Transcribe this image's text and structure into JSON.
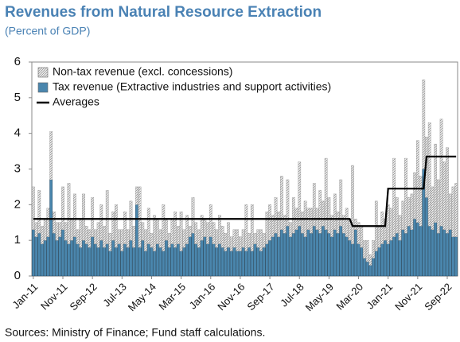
{
  "chart_data": {
    "type": "bar",
    "stacked": true,
    "title": "Revenues from Natural Resource Extraction",
    "subtitle": "(Percent of GDP)",
    "source": "Sources: Ministry of Finance; Fund staff calculations.",
    "categories": [
      "Jan-11",
      null,
      null,
      null,
      null,
      null,
      null,
      null,
      null,
      null,
      "Nov-11",
      null,
      null,
      null,
      null,
      null,
      null,
      null,
      null,
      null,
      "Sep-12",
      null,
      null,
      null,
      null,
      null,
      null,
      null,
      null,
      null,
      "Jul-13",
      null,
      null,
      null,
      null,
      null,
      null,
      null,
      null,
      null,
      "May-14",
      null,
      null,
      null,
      null,
      null,
      null,
      null,
      null,
      null,
      "Mar-15",
      null,
      null,
      null,
      null,
      null,
      null,
      null,
      null,
      null,
      "Jan-16",
      null,
      null,
      null,
      null,
      null,
      null,
      null,
      null,
      null,
      "Nov-16",
      null,
      null,
      null,
      null,
      null,
      null,
      null,
      null,
      null,
      "Sep-17",
      null,
      null,
      null,
      null,
      null,
      null,
      null,
      null,
      null,
      "Jul-18",
      null,
      null,
      null,
      null,
      null,
      null,
      null,
      null,
      null,
      "May-19",
      null,
      null,
      null,
      null,
      null,
      null,
      null,
      null,
      null,
      "Mar-20",
      null,
      null,
      null,
      null,
      null,
      null,
      null,
      null,
      null,
      "Jan-21",
      null,
      null,
      null,
      null,
      null,
      null,
      null,
      null,
      null,
      "Nov-21",
      null,
      null,
      null,
      null,
      null,
      null,
      null,
      null,
      null,
      "Sep-22",
      null,
      null,
      null
    ],
    "ylim": [
      0,
      6
    ],
    "yticks": [
      0,
      1,
      2,
      3,
      4,
      5,
      6
    ],
    "grid": false,
    "legend": "upper-left",
    "series": [
      {
        "name": "Tax revenue (Extractive industries and support activities)",
        "color": "#4a86ad",
        "kind": "bar",
        "values": [
          1.3,
          1.1,
          1.2,
          0.9,
          1.0,
          1.1,
          2.7,
          1.2,
          1.0,
          1.1,
          1.3,
          1.0,
          0.9,
          1.0,
          1.1,
          0.9,
          0.8,
          1.0,
          0.9,
          0.8,
          1.1,
          0.9,
          0.8,
          1.0,
          0.8,
          0.9,
          0.7,
          1.0,
          0.8,
          0.9,
          0.7,
          0.9,
          0.8,
          1.0,
          0.8,
          2.0,
          0.8,
          1.0,
          0.7,
          0.9,
          0.8,
          0.7,
          0.9,
          0.8,
          0.7,
          1.0,
          0.8,
          0.9,
          0.8,
          0.9,
          0.7,
          0.8,
          0.9,
          1.1,
          1.2,
          0.9,
          0.8,
          1.0,
          1.1,
          0.9,
          1.1,
          0.9,
          0.8,
          0.9,
          0.8,
          0.7,
          0.8,
          0.7,
          0.8,
          0.7,
          0.7,
          0.8,
          0.7,
          0.8,
          0.7,
          0.9,
          0.8,
          0.7,
          0.8,
          0.9,
          1.0,
          1.1,
          1.2,
          1.1,
          1.3,
          1.2,
          1.4,
          1.1,
          1.2,
          1.3,
          1.4,
          1.2,
          1.1,
          1.3,
          1.2,
          1.4,
          1.3,
          1.2,
          1.4,
          1.3,
          1.2,
          1.1,
          1.3,
          1.2,
          1.4,
          1.2,
          1.1,
          1.0,
          0.9,
          1.3,
          0.9,
          0.8,
          0.5,
          0.4,
          0.3,
          0.5,
          0.7,
          0.8,
          0.9,
          1.0,
          0.9,
          1.0,
          1.1,
          1.2,
          1.0,
          1.3,
          1.2,
          1.4,
          1.3,
          1.6,
          1.5,
          1.4,
          3.0,
          2.2,
          1.4,
          1.3,
          1.5,
          1.2,
          1.4,
          1.3,
          1.2,
          1.3,
          1.1,
          1.1
        ]
      },
      {
        "name": "Non-tax revenue (excl. concessions)",
        "color": "#d9d9d9",
        "kind": "bar",
        "values": [
          1.2,
          0.4,
          1.2,
          0.5,
          0.6,
          0.8,
          1.35,
          0.6,
          0.5,
          0.4,
          1.2,
          0.5,
          1.7,
          0.6,
          1.2,
          0.4,
          0.8,
          1.3,
          0.5,
          0.5,
          1.1,
          0.4,
          0.7,
          1.0,
          0.6,
          1.5,
          0.5,
          0.8,
          1.2,
          0.4,
          0.6,
          0.9,
          0.5,
          1.1,
          0.6,
          0.5,
          1.7,
          0.5,
          0.6,
          1.0,
          0.4,
          1.0,
          0.7,
          0.5,
          1.3,
          0.6,
          0.4,
          0.7,
          1.0,
          0.5,
          1.1,
          0.5,
          0.8,
          0.3,
          1.0,
          0.6,
          0.5,
          0.7,
          0.5,
          0.6,
          0.9,
          0.6,
          0.5,
          0.8,
          0.6,
          0.5,
          0.7,
          0.4,
          0.5,
          0.6,
          0.4,
          0.5,
          1.3,
          0.4,
          1.3,
          0.3,
          0.5,
          0.6,
          0.4,
          0.9,
          1.0,
          0.6,
          1.0,
          0.7,
          1.5,
          0.5,
          1.3,
          0.4,
          1.0,
          0.6,
          1.8,
          0.6,
          1.0,
          0.6,
          0.7,
          1.2,
          0.6,
          1.2,
          0.7,
          2.0,
          1.0,
          0.6,
          1.0,
          0.6,
          1.3,
          0.5,
          0.8,
          0.6,
          2.2,
          0.3,
          0.6,
          0.6,
          0.5,
          0.6,
          0.3,
          0.5,
          1.4,
          0.6,
          0.9,
          0.6,
          1.1,
          0.9,
          2.2,
          1.0,
          0.7,
          0.8,
          2.1,
          0.8,
          1.0,
          1.3,
          2.3,
          1.4,
          2.5,
          1.7,
          2.9,
          1.2,
          2.2,
          1.5,
          3.0,
          1.9,
          2.4,
          1.0,
          1.4,
          1.5
        ]
      },
      {
        "name": "Averages",
        "color": "#000000",
        "kind": "line",
        "values": [
          1.6,
          1.6,
          1.6,
          1.6,
          1.6,
          1.6,
          1.6,
          1.6,
          1.6,
          1.6,
          1.6,
          1.6,
          1.6,
          1.6,
          1.6,
          1.6,
          1.6,
          1.6,
          1.6,
          1.6,
          1.6,
          1.6,
          1.6,
          1.6,
          1.6,
          1.6,
          1.6,
          1.6,
          1.6,
          1.6,
          1.6,
          1.6,
          1.6,
          1.6,
          1.6,
          1.6,
          1.6,
          1.6,
          1.6,
          1.6,
          1.6,
          1.6,
          1.6,
          1.6,
          1.6,
          1.6,
          1.6,
          1.6,
          1.6,
          1.6,
          1.6,
          1.6,
          1.6,
          1.6,
          1.6,
          1.6,
          1.6,
          1.6,
          1.6,
          1.6,
          1.6,
          1.6,
          1.6,
          1.6,
          1.6,
          1.6,
          1.6,
          1.6,
          1.6,
          1.6,
          1.6,
          1.6,
          1.6,
          1.6,
          1.6,
          1.6,
          1.6,
          1.6,
          1.6,
          1.6,
          1.6,
          1.6,
          1.6,
          1.6,
          1.6,
          1.6,
          1.6,
          1.6,
          1.6,
          1.6,
          1.6,
          1.6,
          1.6,
          1.6,
          1.6,
          1.6,
          1.6,
          1.6,
          1.6,
          1.6,
          1.6,
          1.6,
          1.6,
          1.6,
          1.6,
          1.6,
          1.6,
          1.6,
          1.4,
          1.4,
          1.4,
          1.4,
          1.4,
          1.4,
          1.4,
          1.4,
          1.4,
          1.4,
          1.4,
          1.4,
          2.45,
          2.45,
          2.45,
          2.45,
          2.45,
          2.45,
          2.45,
          2.45,
          2.45,
          2.45,
          2.45,
          2.45,
          2.45,
          3.35,
          3.35,
          3.35,
          3.35,
          3.35,
          3.35,
          3.35,
          3.35,
          3.35,
          3.35,
          3.35
        ]
      }
    ]
  }
}
